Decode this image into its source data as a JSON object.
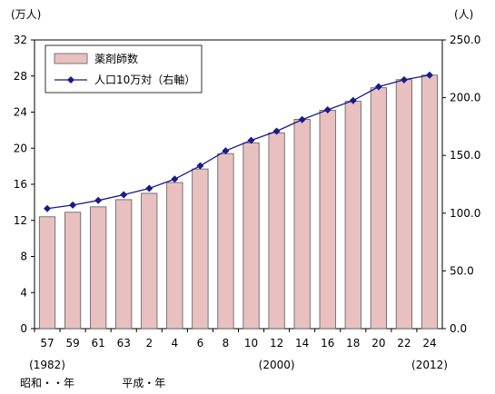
{
  "chart_data": {
    "type": "bar+line",
    "left_axis_unit": "(万人)",
    "right_axis_unit": "(人)",
    "categories": [
      "57",
      "59",
      "61",
      "63",
      "2",
      "4",
      "6",
      "8",
      "10",
      "12",
      "14",
      "16",
      "18",
      "20",
      "22",
      "24"
    ],
    "year_notes": [
      {
        "category_index": 0,
        "text": "(1982)"
      },
      {
        "category_index": 9,
        "text": "(2000)"
      },
      {
        "category_index": 15,
        "text": "(2012)"
      }
    ],
    "era_labels": [
      {
        "category_index": 0,
        "text": "昭和・・年"
      },
      {
        "category_index": 4,
        "text": "平成・年"
      }
    ],
    "y_left": {
      "min": 0,
      "max": 32,
      "ticks": [
        "0",
        "4",
        "8",
        "12",
        "16",
        "20",
        "24",
        "28",
        "32"
      ]
    },
    "y_right": {
      "min": 0,
      "max": 250,
      "ticks": [
        "0.0",
        "50.0",
        "100.0",
        "150.0",
        "200.0",
        "250.0"
      ]
    },
    "series": [
      {
        "name": "薬剤師数",
        "type": "bar",
        "axis": "left",
        "values": [
          12.4,
          12.9,
          13.5,
          14.3,
          15.0,
          16.2,
          17.7,
          19.4,
          20.6,
          21.7,
          23.2,
          24.2,
          25.2,
          26.7,
          27.6,
          28.1
        ]
      },
      {
        "name": "人口10万対（右軸）",
        "type": "line",
        "axis": "right",
        "values": [
          104.0,
          107.0,
          111.0,
          116.0,
          121.5,
          129.5,
          141.0,
          154.0,
          163.0,
          171.0,
          181.0,
          189.5,
          197.5,
          209.5,
          215.5,
          219.5
        ]
      }
    ],
    "colors": {
      "bar_fill": "#e8c0c0",
      "bar_stroke": "#5a5a5a",
      "line": "#1a1a8c",
      "marker": "#1a1a8c"
    },
    "legend_placement": "top-left",
    "grid": false
  }
}
